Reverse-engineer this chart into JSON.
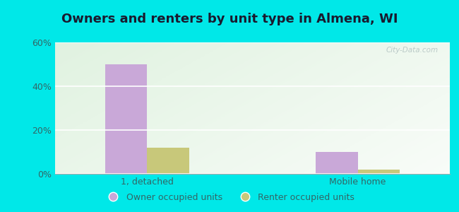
{
  "title": "Owners and renters by unit type in Almena, WI",
  "categories": [
    "1, detached",
    "Mobile home"
  ],
  "owner_values": [
    50,
    10
  ],
  "renter_values": [
    12,
    2
  ],
  "owner_color": "#c9a8d8",
  "renter_color": "#c8c87a",
  "ylim": [
    0,
    60
  ],
  "yticks": [
    0,
    20,
    40,
    60
  ],
  "ytick_labels": [
    "0%",
    "20%",
    "40%",
    "60%"
  ],
  "legend_owner": "Owner occupied units",
  "legend_renter": "Renter occupied units",
  "bg_outer": "#00e8e8",
  "watermark": "City-Data.com",
  "title_fontsize": 13,
  "bar_width": 0.32,
  "title_color": "#1a1a2e",
  "tick_color": "#336666",
  "legend_fontsize": 9
}
